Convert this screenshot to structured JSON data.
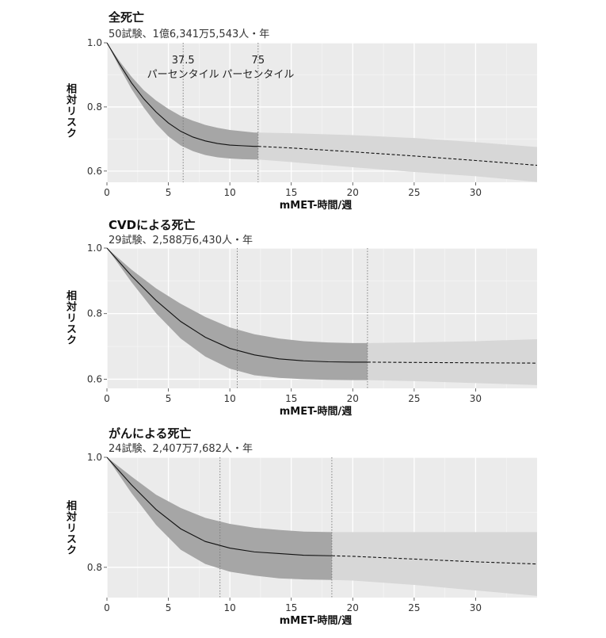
{
  "chart_data": [
    {
      "type": "line",
      "title": "全死亡",
      "subtitle": "50試験、1億6,341万5,543人・年",
      "xlabel": "mMET-時間/週",
      "ylabel": "相対リスク",
      "xlim": [
        0,
        35
      ],
      "ylim": [
        0.565,
        1.0
      ],
      "xticks": [
        0,
        5,
        10,
        15,
        20,
        25,
        30
      ],
      "yticks": [
        0.6,
        0.8,
        1.0
      ],
      "ytick_labels": [
        "0.6",
        "0.8",
        "1.0"
      ],
      "percentile_lines": [
        {
          "x": 6.2,
          "label_value": "37.5",
          "label_text": "パーセンタイル"
        },
        {
          "x": 12.3,
          "label_value": "75",
          "label_text": "パーセンタイル"
        }
      ],
      "extrapolation_start": 12.3,
      "series": [
        {
          "x": [
            0,
            1,
            2,
            3,
            4,
            5,
            6,
            7,
            8,
            9,
            10,
            11,
            12,
            12.3,
            15,
            20,
            25,
            30,
            35
          ],
          "y": [
            1.0,
            0.935,
            0.875,
            0.825,
            0.784,
            0.75,
            0.724,
            0.706,
            0.694,
            0.686,
            0.681,
            0.679,
            0.677,
            0.677,
            0.672,
            0.66,
            0.647,
            0.633,
            0.618
          ],
          "lower": [
            1.0,
            0.925,
            0.856,
            0.798,
            0.748,
            0.708,
            0.68,
            0.662,
            0.65,
            0.643,
            0.639,
            0.637,
            0.636,
            0.636,
            0.628,
            0.612,
            0.597,
            0.584,
            0.566
          ],
          "upper": [
            1.0,
            0.944,
            0.894,
            0.852,
            0.82,
            0.794,
            0.772,
            0.757,
            0.744,
            0.735,
            0.728,
            0.724,
            0.72,
            0.72,
            0.718,
            0.712,
            0.703,
            0.69,
            0.675
          ]
        }
      ]
    },
    {
      "type": "line",
      "title": "CVDによる死亡",
      "subtitle": "29試験、2,588万6,430人・年",
      "xlabel": "mMET-時間/週",
      "ylabel": "相対リスク",
      "xlim": [
        0,
        35
      ],
      "ylim": [
        0.572,
        1.0
      ],
      "xticks": [
        0,
        5,
        10,
        15,
        20,
        25,
        30
      ],
      "yticks": [
        0.6,
        0.8,
        1.0
      ],
      "ytick_labels": [
        "0.6",
        "0.8",
        "1.0"
      ],
      "percentile_lines": [
        {
          "x": 10.6
        },
        {
          "x": 21.2
        }
      ],
      "extrapolation_start": 21.2,
      "series": [
        {
          "x": [
            0,
            2,
            4,
            6,
            8,
            10,
            12,
            14,
            16,
            18,
            20,
            21.2,
            25,
            30,
            35
          ],
          "y": [
            1.0,
            0.915,
            0.84,
            0.776,
            0.728,
            0.694,
            0.674,
            0.662,
            0.656,
            0.653,
            0.652,
            0.652,
            0.651,
            0.65,
            0.649
          ],
          "lower": [
            1.0,
            0.896,
            0.801,
            0.724,
            0.669,
            0.632,
            0.612,
            0.604,
            0.6,
            0.598,
            0.597,
            0.597,
            0.594,
            0.588,
            0.582
          ],
          "upper": [
            1.0,
            0.934,
            0.877,
            0.83,
            0.79,
            0.758,
            0.737,
            0.724,
            0.716,
            0.712,
            0.71,
            0.71,
            0.712,
            0.716,
            0.722
          ]
        }
      ]
    },
    {
      "type": "line",
      "title": "がんによる死亡",
      "subtitle": "24試験、2,407万7,682人・年",
      "xlabel": "mMET-時間/週",
      "ylabel": "相対リスク",
      "xlim": [
        0,
        35
      ],
      "ylim": [
        0.745,
        1.0
      ],
      "xticks": [
        0,
        5,
        10,
        15,
        20,
        25,
        30
      ],
      "yticks": [
        0.8,
        1.0
      ],
      "ytick_labels": [
        "0.8",
        "1.0"
      ],
      "percentile_lines": [
        {
          "x": 9.2
        },
        {
          "x": 18.3
        }
      ],
      "extrapolation_start": 18.3,
      "series": [
        {
          "x": [
            0,
            2,
            4,
            6,
            8,
            10,
            12,
            14,
            16,
            18.3,
            20,
            25,
            30,
            35
          ],
          "y": [
            1.0,
            0.95,
            0.905,
            0.87,
            0.847,
            0.835,
            0.828,
            0.825,
            0.822,
            0.821,
            0.82,
            0.815,
            0.81,
            0.806
          ],
          "lower": [
            1.0,
            0.935,
            0.877,
            0.832,
            0.806,
            0.792,
            0.785,
            0.78,
            0.778,
            0.777,
            0.776,
            0.768,
            0.758,
            0.748
          ],
          "upper": [
            1.0,
            0.965,
            0.932,
            0.908,
            0.89,
            0.879,
            0.872,
            0.868,
            0.865,
            0.864,
            0.864,
            0.864,
            0.864,
            0.864
          ]
        }
      ]
    }
  ]
}
